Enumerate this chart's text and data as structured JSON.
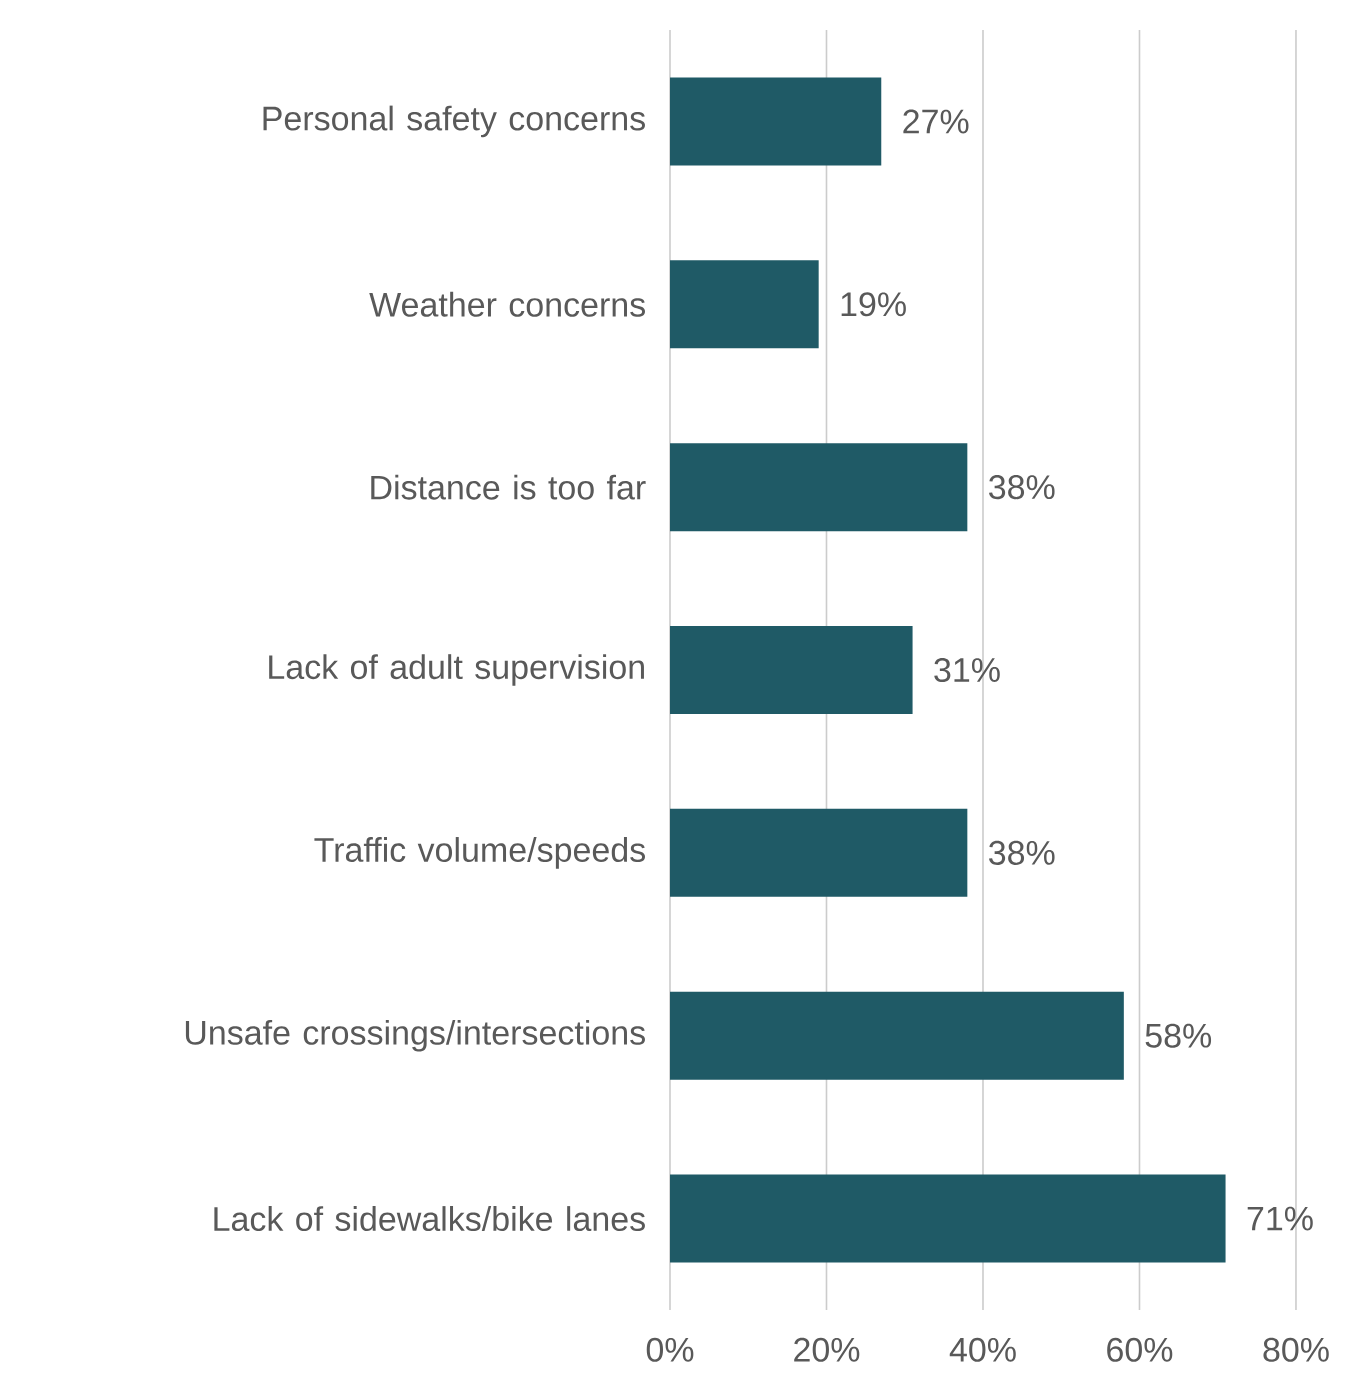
{
  "chart_data": {
    "type": "bar",
    "orientation": "horizontal",
    "categories": [
      "Personal safety concerns",
      "Weather concerns",
      "Distance is too far",
      "Lack of adult supervision",
      "Traffic volume/speeds",
      "Unsafe crossings/intersections",
      "Lack of sidewalks/bike lanes"
    ],
    "values": [
      27,
      19,
      38,
      31,
      38,
      58,
      71
    ],
    "value_labels": [
      "27%",
      "19%",
      "38%",
      "31%",
      "38%",
      "58%",
      "71%"
    ],
    "color": "#1f5a66",
    "xlim": [
      0,
      80
    ],
    "xticks": [
      {
        "value": 0,
        "label": "0%"
      },
      {
        "value": 20,
        "label": "20%"
      },
      {
        "value": 40,
        "label": "40%"
      },
      {
        "value": 60,
        "label": "60%"
      },
      {
        "value": 80,
        "label": "80%"
      }
    ],
    "grid": "x"
  }
}
